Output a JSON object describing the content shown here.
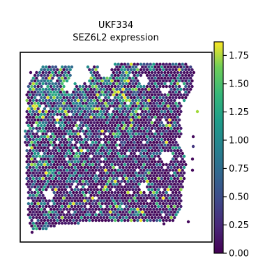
{
  "chart_data": {
    "type": "scatter",
    "title_line1": "UKF334",
    "title_line2": "SEZ6L2 expression",
    "xlabel": "",
    "ylabel": "",
    "axis_ticks_shown": false,
    "colormap": "viridis",
    "colorbar": {
      "vmin": 0.0,
      "vmax": 1.87,
      "ticks": [
        "0.00",
        "0.25",
        "0.50",
        "0.75",
        "1.00",
        "1.25",
        "1.50",
        "1.75"
      ],
      "tick_values": [
        0.0,
        0.25,
        0.5,
        0.75,
        1.0,
        1.25,
        1.5,
        1.75
      ],
      "placement": "right"
    },
    "marker": "hexagonal spot",
    "note_values": "spot expression values are dense spatial transcriptomics points; majority near 0, sparse bright spots up to ~1.87, higher density of high values in upper-left region"
  }
}
